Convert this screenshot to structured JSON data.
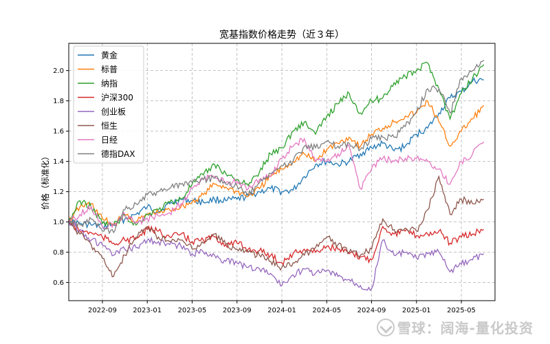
{
  "chart_data": {
    "type": "line",
    "title": "宽基指数价格走势（近３年）",
    "ylabel": "价格（标准化）",
    "xlabel": "",
    "x_ticks": [
      "2022-09",
      "2023-01",
      "2023-05",
      "2023-09",
      "2024-01",
      "2024-05",
      "2024-09",
      "2025-01",
      "2025-05"
    ],
    "x_range": [
      "2022-06",
      "2025-08"
    ],
    "ylim": [
      0.48,
      2.18
    ],
    "y_ticks": [
      "0.6",
      "0.8",
      "1.0",
      "1.2",
      "1.4",
      "1.6",
      "1.8",
      "2.0"
    ],
    "grid": true,
    "legend_position": "top-left",
    "x": [
      "2022-06",
      "2022-07",
      "2022-08",
      "2022-09",
      "2022-10",
      "2022-11",
      "2022-12",
      "2023-01",
      "2023-02",
      "2023-03",
      "2023-04",
      "2023-05",
      "2023-06",
      "2023-07",
      "2023-08",
      "2023-09",
      "2023-10",
      "2023-11",
      "2023-12",
      "2024-01",
      "2024-02",
      "2024-03",
      "2024-04",
      "2024-05",
      "2024-06",
      "2024-07",
      "2024-08",
      "2024-09",
      "2024-10",
      "2024-11",
      "2024-12",
      "2025-01",
      "2025-02",
      "2025-03",
      "2025-04",
      "2025-05",
      "2025-06",
      "2025-07"
    ],
    "series": [
      {
        "name": "黄金",
        "color": "#1f77b4",
        "values": [
          1.0,
          0.99,
          0.98,
          0.97,
          0.98,
          1.02,
          1.05,
          1.1,
          1.07,
          1.12,
          1.15,
          1.14,
          1.13,
          1.15,
          1.14,
          1.15,
          1.17,
          1.2,
          1.22,
          1.2,
          1.21,
          1.3,
          1.38,
          1.4,
          1.38,
          1.4,
          1.45,
          1.49,
          1.52,
          1.47,
          1.5,
          1.58,
          1.62,
          1.72,
          1.82,
          1.86,
          1.93,
          1.94
        ]
      },
      {
        "name": "标普",
        "color": "#ff7f0e",
        "values": [
          1.0,
          1.1,
          1.12,
          1.02,
          0.98,
          1.05,
          1.0,
          1.05,
          1.06,
          1.08,
          1.1,
          1.13,
          1.18,
          1.25,
          1.23,
          1.2,
          1.17,
          1.22,
          1.3,
          1.35,
          1.4,
          1.45,
          1.4,
          1.48,
          1.52,
          1.56,
          1.5,
          1.58,
          1.62,
          1.66,
          1.7,
          1.72,
          1.8,
          1.66,
          1.5,
          1.6,
          1.68,
          1.77
        ]
      },
      {
        "name": "纳指",
        "color": "#2ca02c",
        "values": [
          1.0,
          1.14,
          1.1,
          0.99,
          0.98,
          1.04,
          0.98,
          1.05,
          1.08,
          1.13,
          1.15,
          1.25,
          1.31,
          1.38,
          1.32,
          1.28,
          1.24,
          1.33,
          1.45,
          1.49,
          1.6,
          1.66,
          1.58,
          1.7,
          1.78,
          1.85,
          1.72,
          1.8,
          1.82,
          1.92,
          1.96,
          2.0,
          2.05,
          1.88,
          1.68,
          1.85,
          1.95,
          2.04
        ]
      },
      {
        "name": "沪深300",
        "color": "#d62728",
        "values": [
          1.0,
          0.94,
          0.93,
          0.9,
          0.86,
          0.88,
          0.89,
          0.95,
          0.94,
          0.9,
          0.92,
          0.87,
          0.88,
          0.9,
          0.85,
          0.86,
          0.82,
          0.81,
          0.78,
          0.73,
          0.79,
          0.82,
          0.8,
          0.84,
          0.82,
          0.79,
          0.77,
          0.75,
          0.97,
          0.92,
          0.94,
          0.91,
          0.92,
          0.94,
          0.86,
          0.9,
          0.92,
          0.95
        ]
      },
      {
        "name": "创业板",
        "color": "#9467bd",
        "values": [
          1.0,
          0.95,
          0.88,
          0.85,
          0.78,
          0.82,
          0.83,
          0.88,
          0.87,
          0.85,
          0.84,
          0.79,
          0.8,
          0.78,
          0.74,
          0.73,
          0.7,
          0.69,
          0.66,
          0.58,
          0.65,
          0.69,
          0.66,
          0.68,
          0.64,
          0.62,
          0.58,
          0.56,
          0.88,
          0.78,
          0.8,
          0.76,
          0.79,
          0.8,
          0.67,
          0.72,
          0.75,
          0.79
        ]
      },
      {
        "name": "恒生",
        "color": "#8c564b",
        "values": [
          1.0,
          0.92,
          0.85,
          0.76,
          0.64,
          0.78,
          0.9,
          0.97,
          0.9,
          0.87,
          0.88,
          0.82,
          0.86,
          0.92,
          0.85,
          0.82,
          0.8,
          0.78,
          0.74,
          0.7,
          0.73,
          0.78,
          0.83,
          0.9,
          0.85,
          0.8,
          0.78,
          0.82,
          1.02,
          0.95,
          0.96,
          0.94,
          1.08,
          1.3,
          1.05,
          1.15,
          1.12,
          1.15
        ]
      },
      {
        "name": "日经",
        "color": "#e377c2",
        "values": [
          1.0,
          1.05,
          1.1,
          0.97,
          0.99,
          1.05,
          1.0,
          1.02,
          1.04,
          1.06,
          1.12,
          1.22,
          1.28,
          1.3,
          1.26,
          1.27,
          1.22,
          1.28,
          1.3,
          1.42,
          1.5,
          1.55,
          1.4,
          1.4,
          1.45,
          1.5,
          1.22,
          1.35,
          1.42,
          1.4,
          1.42,
          1.42,
          1.4,
          1.35,
          1.25,
          1.4,
          1.45,
          1.53
        ]
      },
      {
        "name": "德指DAX",
        "color": "#7f7f7f",
        "values": [
          1.0,
          0.98,
          1.02,
          0.94,
          0.93,
          1.08,
          1.12,
          1.18,
          1.2,
          1.22,
          1.25,
          1.26,
          1.28,
          1.29,
          1.25,
          1.24,
          1.18,
          1.26,
          1.32,
          1.37,
          1.4,
          1.5,
          1.49,
          1.53,
          1.5,
          1.52,
          1.48,
          1.55,
          1.56,
          1.56,
          1.63,
          1.73,
          1.88,
          1.88,
          1.72,
          1.95,
          2.0,
          2.07
        ]
      }
    ]
  },
  "watermark": "雪球：阔海-量化投资"
}
